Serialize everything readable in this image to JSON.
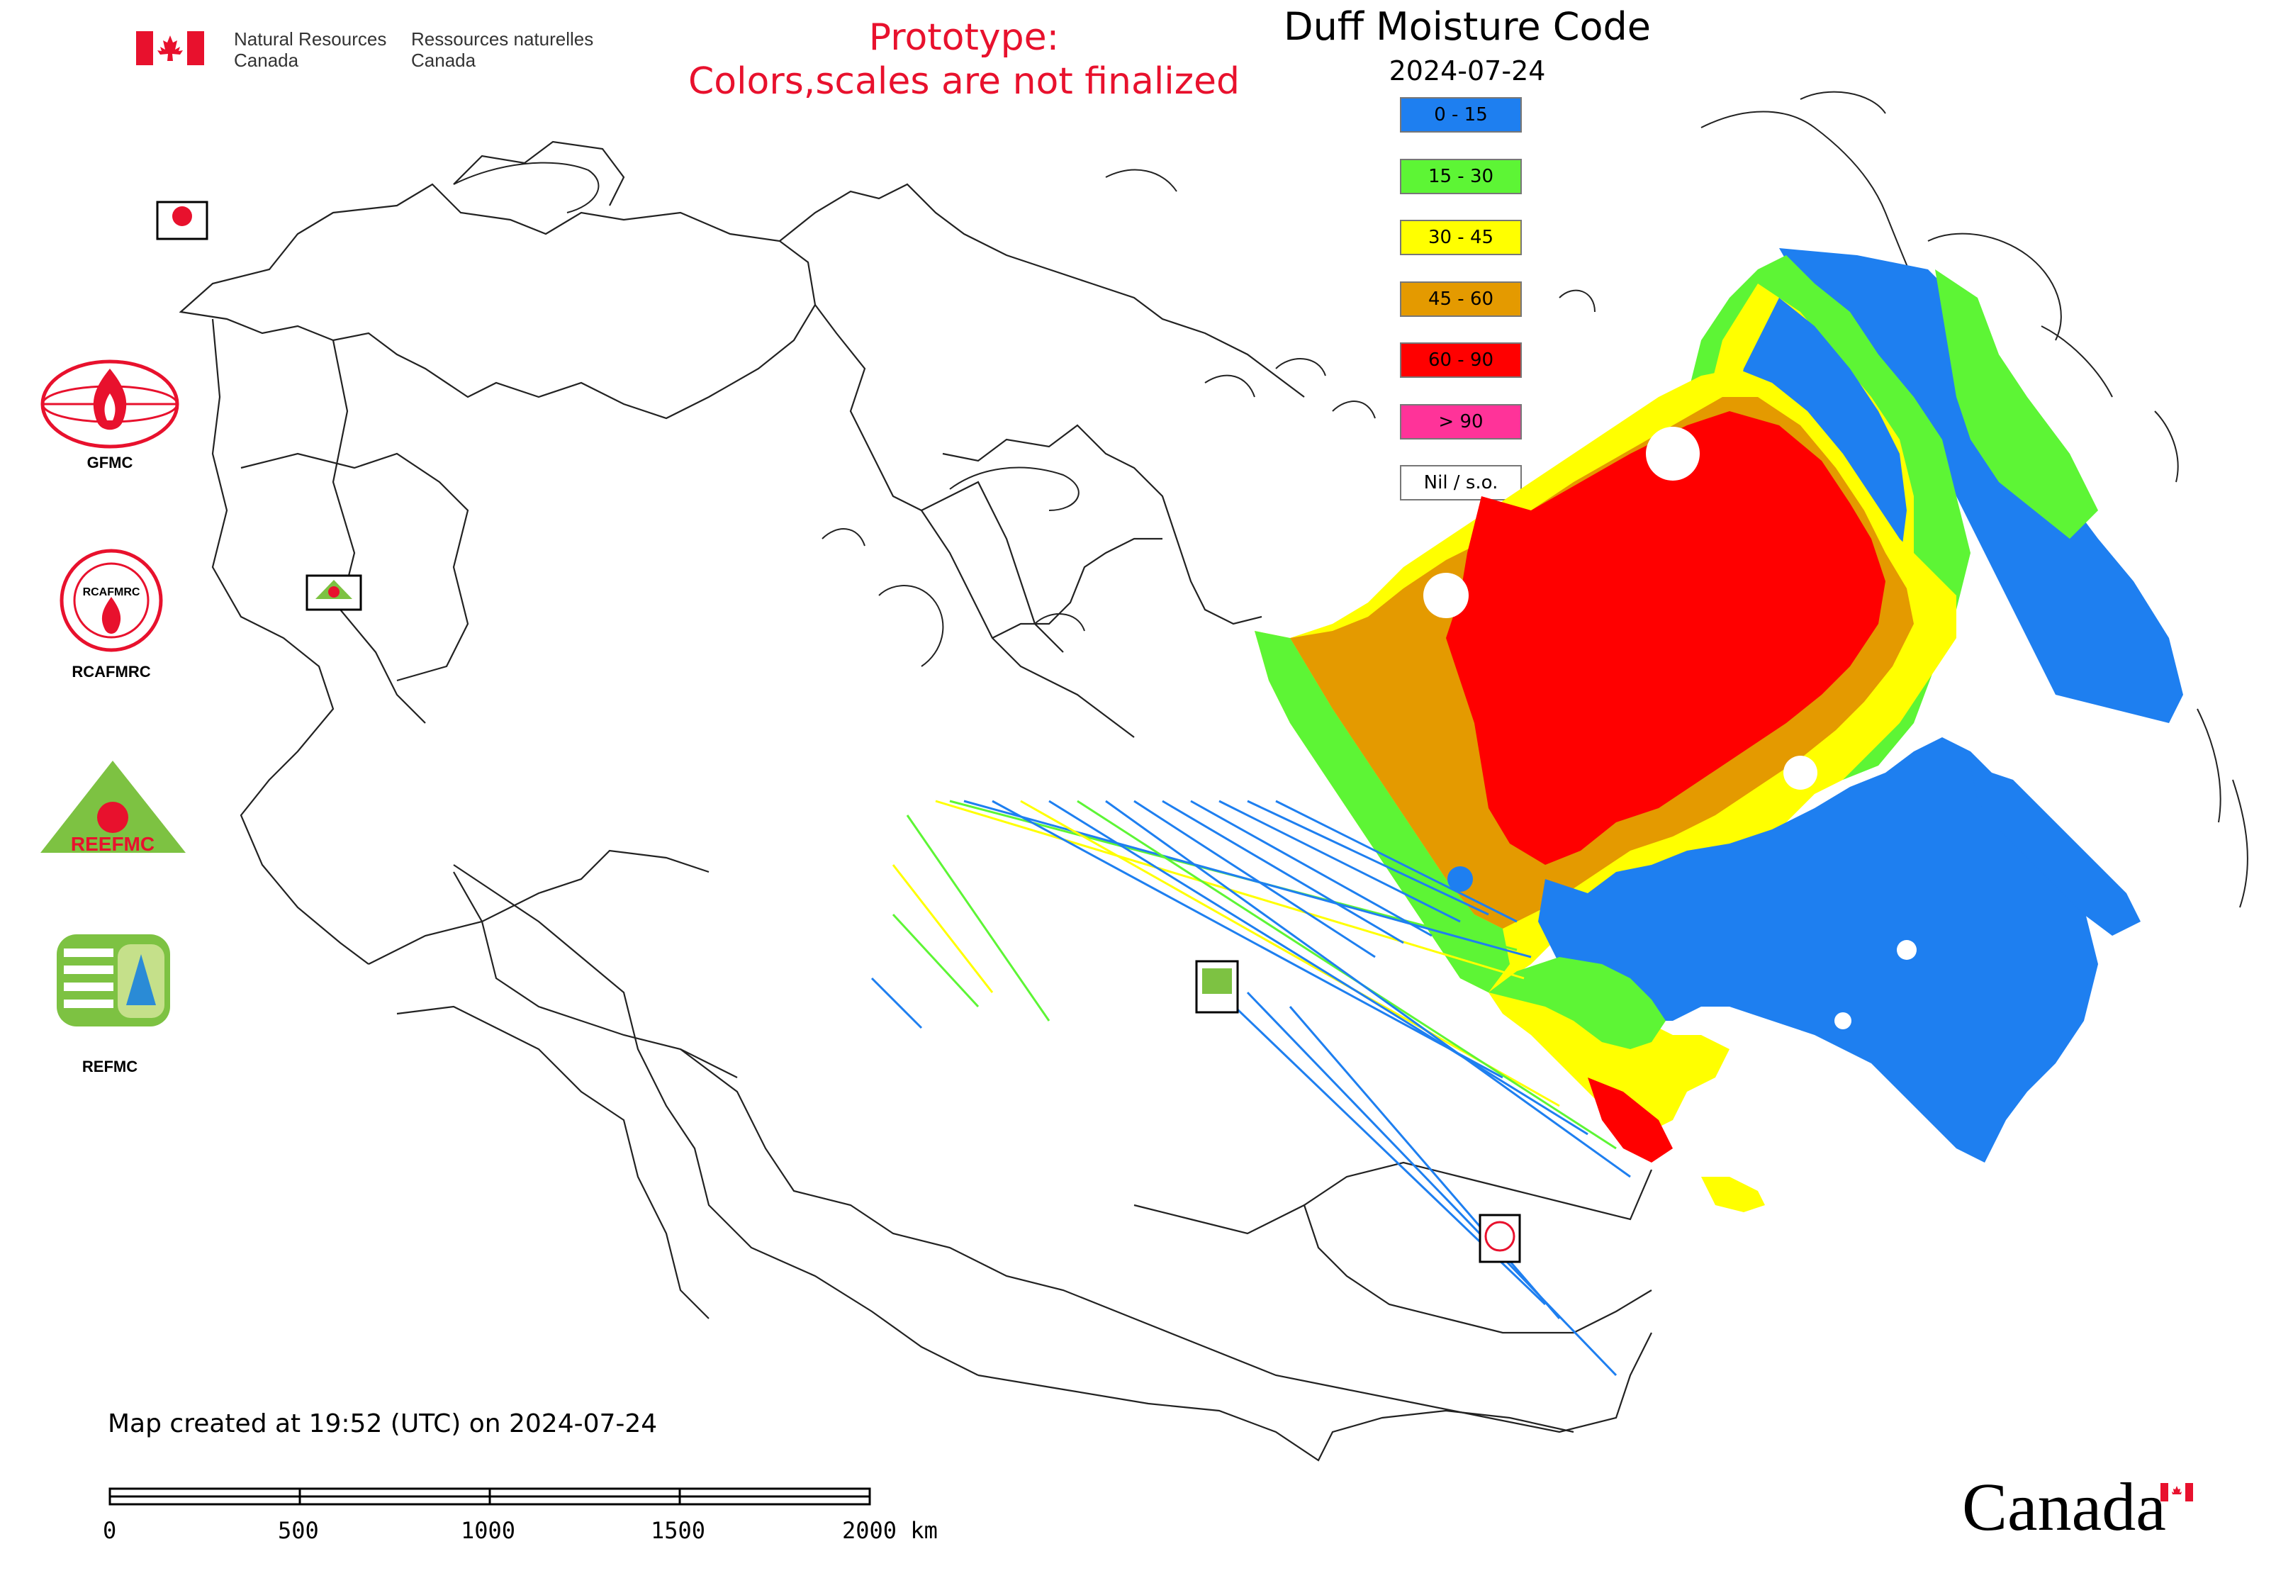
{
  "header": {
    "agency_en_1": "Natural Resources",
    "agency_en_2": "Canada",
    "agency_fr_1": "Ressources naturelles",
    "agency_fr_2": "Canada",
    "prototype_line1": "Prototype:",
    "prototype_line2": "Colors,scales are not finalized",
    "prototype_color": "#e8112d"
  },
  "map": {
    "title": "Duff Moisture Code",
    "date": "2024-07-24",
    "legend": [
      {
        "label": "0 - 15",
        "color": "#1e7ff0"
      },
      {
        "label": "15 - 30",
        "color": "#5df535"
      },
      {
        "label": "30 - 45",
        "color": "#ffff00"
      },
      {
        "label": "45 - 60",
        "color": "#e49a00"
      },
      {
        "label": "60 - 90",
        "color": "#ff0000"
      },
      {
        "label": "> 90",
        "color": "#ff3399"
      },
      {
        "label": "Nil / s.o.",
        "color": "#ffffff"
      }
    ],
    "created": "Map created at 19:52 (UTC) on 2024-07-24",
    "scale_ticks": [
      "0",
      "500",
      "1000",
      "1500",
      "2000 km"
    ]
  },
  "logos": {
    "gfmc": "GFMC",
    "rcafmrc": "RCAFMRC",
    "reefmc": "REEFMC",
    "refmc": "REFMC",
    "rcafmrc_ring": "RCAFMRC",
    "reefmc_text": "REEFMC"
  },
  "footer": {
    "wordmark": "Canada"
  }
}
